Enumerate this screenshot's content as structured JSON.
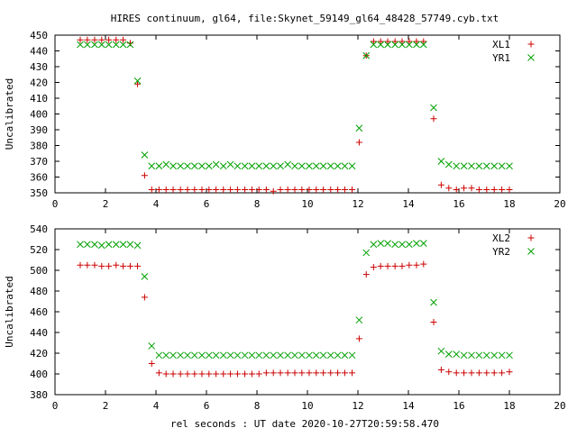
{
  "chart_data": [
    {
      "type": "scatter",
      "title": "HIRES continuum, gl64, file:Skynet_59149_gl64_48428_57749.cyb.txt",
      "xlabel": "",
      "ylabel": "Uncalibrated",
      "xlim": [
        0,
        20
      ],
      "ylim": [
        350,
        450
      ],
      "xticks": [
        0,
        2,
        4,
        6,
        8,
        10,
        12,
        14,
        16,
        18,
        20
      ],
      "yticks": [
        350,
        360,
        370,
        380,
        390,
        400,
        410,
        420,
        430,
        440,
        450
      ],
      "legend_position": "top-right",
      "series": [
        {
          "name": "XL1",
          "marker": "plus",
          "color": "#cc0000",
          "x": [
            1.0,
            1.28,
            1.57,
            1.85,
            2.13,
            2.42,
            2.7,
            2.98,
            3.27,
            3.55,
            3.83,
            4.12,
            4.4,
            4.68,
            4.97,
            5.25,
            5.53,
            5.82,
            6.1,
            6.38,
            6.67,
            6.95,
            7.23,
            7.52,
            7.8,
            8.08,
            8.37,
            8.65,
            8.93,
            9.22,
            9.5,
            9.78,
            10.07,
            10.35,
            10.63,
            10.92,
            11.2,
            11.48,
            11.77,
            12.05,
            12.33,
            12.62,
            12.9,
            13.18,
            13.47,
            13.75,
            14.03,
            14.32,
            14.6,
            15.0,
            15.3,
            15.6,
            15.9,
            16.2,
            16.5,
            16.8,
            17.1,
            17.4,
            17.7,
            18.0
          ],
          "y": [
            447,
            447,
            447,
            447,
            447,
            447,
            447,
            445,
            419,
            361,
            352,
            352,
            352,
            352,
            352,
            352,
            352,
            352,
            352,
            352,
            352,
            352,
            352,
            352,
            352,
            352,
            352,
            351,
            352,
            352,
            352,
            352,
            352,
            352,
            352,
            352,
            352,
            352,
            352,
            382,
            437,
            446,
            446,
            446,
            446,
            446,
            446,
            446,
            446,
            397,
            355,
            353,
            352,
            353,
            353,
            352,
            352,
            352,
            352,
            352
          ]
        },
        {
          "name": "YR1",
          "marker": "cross",
          "color": "#00a000",
          "x": [
            1.0,
            1.28,
            1.57,
            1.85,
            2.13,
            2.42,
            2.7,
            2.98,
            3.27,
            3.55,
            3.83,
            4.12,
            4.4,
            4.68,
            4.97,
            5.25,
            5.53,
            5.82,
            6.1,
            6.38,
            6.67,
            6.95,
            7.23,
            7.52,
            7.8,
            8.08,
            8.37,
            8.65,
            8.93,
            9.22,
            9.5,
            9.78,
            10.07,
            10.35,
            10.63,
            10.92,
            11.2,
            11.48,
            11.77,
            12.05,
            12.33,
            12.62,
            12.9,
            13.18,
            13.47,
            13.75,
            14.03,
            14.32,
            14.6,
            15.0,
            15.3,
            15.6,
            15.9,
            16.2,
            16.5,
            16.8,
            17.1,
            17.4,
            17.7,
            18.0
          ],
          "y": [
            444,
            444,
            444,
            444,
            444,
            444,
            444,
            444,
            421,
            374,
            367,
            367,
            368,
            367,
            367,
            367,
            367,
            367,
            367,
            368,
            367,
            368,
            367,
            367,
            367,
            367,
            367,
            367,
            367,
            368,
            367,
            367,
            367,
            367,
            367,
            367,
            367,
            367,
            367,
            391,
            437,
            444,
            444,
            444,
            444,
            444,
            444,
            444,
            444,
            404,
            370,
            368,
            367,
            367,
            367,
            367,
            367,
            367,
            367,
            367
          ]
        }
      ]
    },
    {
      "type": "scatter",
      "title": "",
      "xlabel": "rel seconds : UT date 2020-10-27T20:59:58.470",
      "ylabel": "Uncalibrated",
      "xlim": [
        0,
        20
      ],
      "ylim": [
        380,
        540
      ],
      "xticks": [
        0,
        2,
        4,
        6,
        8,
        10,
        12,
        14,
        16,
        18,
        20
      ],
      "yticks": [
        380,
        400,
        420,
        440,
        460,
        480,
        500,
        520,
        540
      ],
      "legend_position": "top-right",
      "series": [
        {
          "name": "XL2",
          "marker": "plus",
          "color": "#cc0000",
          "x": [
            1.0,
            1.28,
            1.57,
            1.85,
            2.13,
            2.42,
            2.7,
            2.98,
            3.27,
            3.55,
            3.83,
            4.12,
            4.4,
            4.68,
            4.97,
            5.25,
            5.53,
            5.82,
            6.1,
            6.38,
            6.67,
            6.95,
            7.23,
            7.52,
            7.8,
            8.08,
            8.37,
            8.65,
            8.93,
            9.22,
            9.5,
            9.78,
            10.07,
            10.35,
            10.63,
            10.92,
            11.2,
            11.48,
            11.77,
            12.05,
            12.33,
            12.62,
            12.9,
            13.18,
            13.47,
            13.75,
            14.03,
            14.32,
            14.6,
            15.0,
            15.3,
            15.6,
            15.9,
            16.2,
            16.5,
            16.8,
            17.1,
            17.4,
            17.7,
            18.0
          ],
          "y": [
            505,
            505,
            505,
            504,
            504,
            505,
            504,
            504,
            504,
            474,
            410,
            401,
            400,
            400,
            400,
            400,
            400,
            400,
            400,
            400,
            400,
            400,
            400,
            400,
            400,
            400,
            401,
            401,
            401,
            401,
            401,
            401,
            401,
            401,
            401,
            401,
            401,
            401,
            401,
            434,
            496,
            503,
            504,
            504,
            504,
            504,
            505,
            505,
            506,
            450,
            404,
            402,
            401,
            401,
            401,
            401,
            401,
            401,
            401,
            402
          ]
        },
        {
          "name": "YR2",
          "marker": "cross",
          "color": "#00a000",
          "x": [
            1.0,
            1.28,
            1.57,
            1.85,
            2.13,
            2.42,
            2.7,
            2.98,
            3.27,
            3.55,
            3.83,
            4.12,
            4.4,
            4.68,
            4.97,
            5.25,
            5.53,
            5.82,
            6.1,
            6.38,
            6.67,
            6.95,
            7.23,
            7.52,
            7.8,
            8.08,
            8.37,
            8.65,
            8.93,
            9.22,
            9.5,
            9.78,
            10.07,
            10.35,
            10.63,
            10.92,
            11.2,
            11.48,
            11.77,
            12.05,
            12.33,
            12.62,
            12.9,
            13.18,
            13.47,
            13.75,
            14.03,
            14.32,
            14.6,
            15.0,
            15.3,
            15.6,
            15.9,
            16.2,
            16.5,
            16.8,
            17.1,
            17.4,
            17.7,
            18.0
          ],
          "y": [
            525,
            525,
            525,
            524,
            525,
            525,
            525,
            525,
            524,
            494,
            427,
            418,
            418,
            418,
            418,
            418,
            418,
            418,
            418,
            418,
            418,
            418,
            418,
            418,
            418,
            418,
            418,
            418,
            418,
            418,
            418,
            418,
            418,
            418,
            418,
            418,
            418,
            418,
            418,
            452,
            517,
            525,
            526,
            526,
            525,
            525,
            525,
            526,
            526,
            469,
            422,
            419,
            419,
            418,
            418,
            418,
            418,
            418,
            418,
            418
          ]
        }
      ]
    }
  ]
}
